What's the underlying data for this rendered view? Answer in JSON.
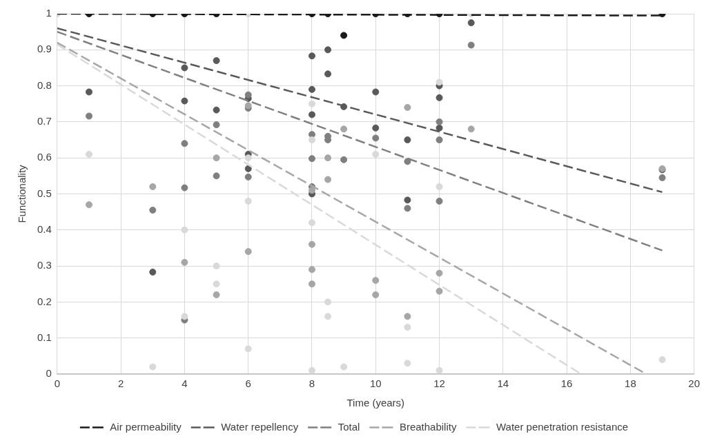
{
  "chart_data": {
    "type": "scatter",
    "xlabel": "Time (years)",
    "ylabel": "Functionality",
    "xlim": [
      0,
      20
    ],
    "xticks": [
      0,
      2,
      4,
      6,
      8,
      10,
      12,
      14,
      16,
      18,
      20
    ],
    "ylim": [
      0,
      1
    ],
    "yticks": [
      0,
      0.1,
      0.2,
      0.3,
      0.4,
      0.5,
      0.6,
      0.7,
      0.8,
      0.9,
      1
    ],
    "grid": true,
    "legend": "bottom",
    "marker": "circle",
    "series": [
      {
        "color": "#d9d9d9",
        "x": [
          0,
          1,
          3,
          4,
          4,
          5,
          5,
          6,
          6,
          6,
          6,
          8,
          8,
          8,
          8,
          8.5,
          8.5,
          9,
          10,
          11,
          11,
          12,
          12,
          12,
          13,
          19
        ],
        "values": [
          1,
          0.61,
          0.02,
          0.4,
          0.16,
          0.3,
          0.25,
          1,
          0.6,
          0.48,
          0.07,
          0.75,
          0.65,
          0.42,
          0.01,
          0.2,
          0.16,
          0.02,
          0.61,
          0.13,
          0.03,
          0.81,
          0.52,
          0.01,
          1,
          0.04
        ]
      },
      {
        "color": "#a6a6a6",
        "x": [
          1,
          3,
          4,
          5,
          5,
          6,
          6,
          8,
          8,
          8,
          8,
          8.5,
          8.5,
          9,
          10,
          10,
          11,
          11,
          12,
          12,
          13,
          19
        ],
        "values": [
          0.47,
          0.52,
          0.31,
          0.6,
          0.22,
          0.745,
          0.34,
          0.51,
          0.36,
          0.29,
          0.25,
          0.6,
          0.54,
          0.68,
          0.26,
          0.22,
          0.74,
          0.16,
          0.28,
          0.23,
          0.68,
          0.57
        ]
      },
      {
        "color": "#7f7f7f",
        "x": [
          1,
          3,
          4,
          4,
          4,
          5,
          5,
          6,
          6,
          6,
          8,
          8,
          8,
          8.5,
          8.5,
          9,
          10,
          11,
          11,
          12,
          12,
          12,
          13,
          19
        ],
        "values": [
          0.716,
          0.455,
          0.64,
          0.517,
          0.15,
          0.692,
          0.55,
          0.775,
          0.738,
          0.547,
          0.665,
          0.598,
          0.52,
          0.66,
          0.65,
          0.595,
          0.655,
          0.59,
          0.46,
          0.7,
          0.65,
          0.48,
          0.913,
          0.545
        ]
      },
      {
        "color": "#595959",
        "x": [
          1,
          3,
          4,
          4,
          5,
          5,
          6,
          6,
          6,
          8,
          8,
          8,
          8,
          8.5,
          8.5,
          9,
          10,
          10,
          11,
          11,
          12,
          12,
          12,
          13,
          19
        ],
        "values": [
          0.783,
          0.283,
          0.85,
          0.758,
          0.87,
          0.733,
          0.765,
          0.61,
          0.57,
          0.883,
          0.79,
          0.72,
          0.5,
          0.9,
          0.833,
          0.742,
          0.783,
          0.683,
          0.65,
          0.483,
          0.8,
          0.767,
          0.683,
          0.975,
          0.567
        ]
      },
      {
        "color": "#1a1a1a",
        "x": [
          1,
          3,
          4,
          5,
          8,
          8.5,
          9,
          10,
          11,
          12,
          19
        ],
        "values": [
          1,
          1,
          1,
          1,
          1,
          1,
          0.94,
          1,
          1,
          1,
          1
        ]
      },
      {
        "type": "line",
        "name": "Air permeability",
        "color": "#1a1a1a",
        "line_style": "dashed",
        "marker": "none",
        "x": [
          0,
          19
        ],
        "values": [
          1,
          0.995
        ]
      },
      {
        "type": "line",
        "name": "Water repellency",
        "color": "#595959",
        "line_style": "dashed",
        "marker": "none",
        "x": [
          0,
          19
        ],
        "values": [
          0.96,
          0.505
        ]
      },
      {
        "type": "line",
        "name": "Total",
        "color": "#7f7f7f",
        "line_style": "dashed",
        "marker": "none",
        "x": [
          0,
          19
        ],
        "values": [
          0.95,
          0.343
        ]
      },
      {
        "type": "line",
        "name": "Breathability",
        "color": "#a6a6a6",
        "line_style": "dashed",
        "marker": "none",
        "x": [
          0,
          18.5
        ],
        "values": [
          0.92,
          0
        ]
      },
      {
        "type": "line",
        "name": "Water penetration resistance",
        "color": "#d9d9d9",
        "line_style": "dashed",
        "marker": "none",
        "x": [
          0,
          16.45
        ],
        "values": [
          0.915,
          0
        ]
      }
    ]
  }
}
